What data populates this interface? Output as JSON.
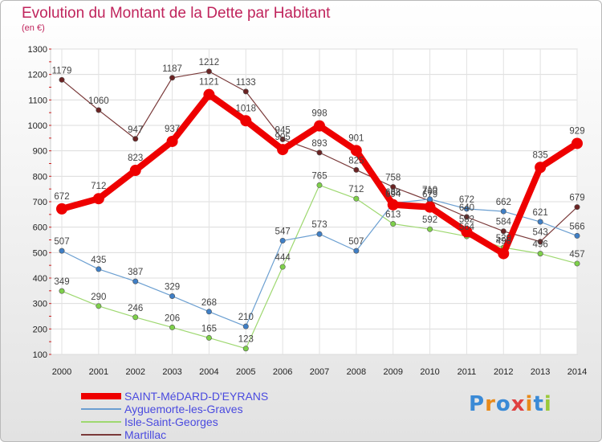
{
  "title": "Evolution du Montant de la Dette par Habitant",
  "subtitle": "(en €)",
  "logo_text": "Proxiti",
  "chart_data": {
    "type": "line",
    "title": "Evolution du Montant de la Dette par Habitant",
    "ylabel": "(en €)",
    "xlabel": "",
    "x": [
      2000,
      2001,
      2002,
      2003,
      2004,
      2005,
      2006,
      2007,
      2008,
      2009,
      2010,
      2011,
      2012,
      2013,
      2014
    ],
    "ylim": [
      100,
      1300
    ],
    "yticks": [
      100,
      200,
      300,
      400,
      500,
      600,
      700,
      800,
      900,
      1000,
      1100,
      1200,
      1300
    ],
    "grid": true,
    "legend_position": "bottom-left",
    "series": [
      {
        "name": "SAINT-MéDARD-D'EYRANS",
        "color": "#ee0000",
        "marker_color": "#ee0000",
        "width": 8,
        "values": [
          672,
          712,
          823,
          937,
          1121,
          1018,
          905,
          998,
          901,
          688,
          679,
          582,
          496,
          835,
          929
        ]
      },
      {
        "name": "Ayguemorte-les-Graves",
        "color": "#6b9fd1",
        "marker_color": "#3f7fc6",
        "width": 1.2,
        "values": [
          507,
          435,
          387,
          329,
          268,
          210,
          547,
          573,
          507,
          694,
          710,
          672,
          662,
          621,
          566
        ]
      },
      {
        "name": "Isle-Saint-Georges",
        "color": "#9ed870",
        "marker_color": "#7ed04a",
        "width": 1.2,
        "values": [
          349,
          290,
          246,
          206,
          165,
          123,
          444,
          765,
          712,
          613,
          592,
          564,
          520,
          496,
          457
        ]
      },
      {
        "name": "Martillac",
        "color": "#7a3a3a",
        "marker_color": "#6b2323",
        "width": 1.2,
        "values": [
          1179,
          1060,
          947,
          1187,
          1212,
          1133,
          945,
          893,
          825,
          758,
          703,
          640,
          584,
          543,
          679
        ]
      }
    ]
  }
}
